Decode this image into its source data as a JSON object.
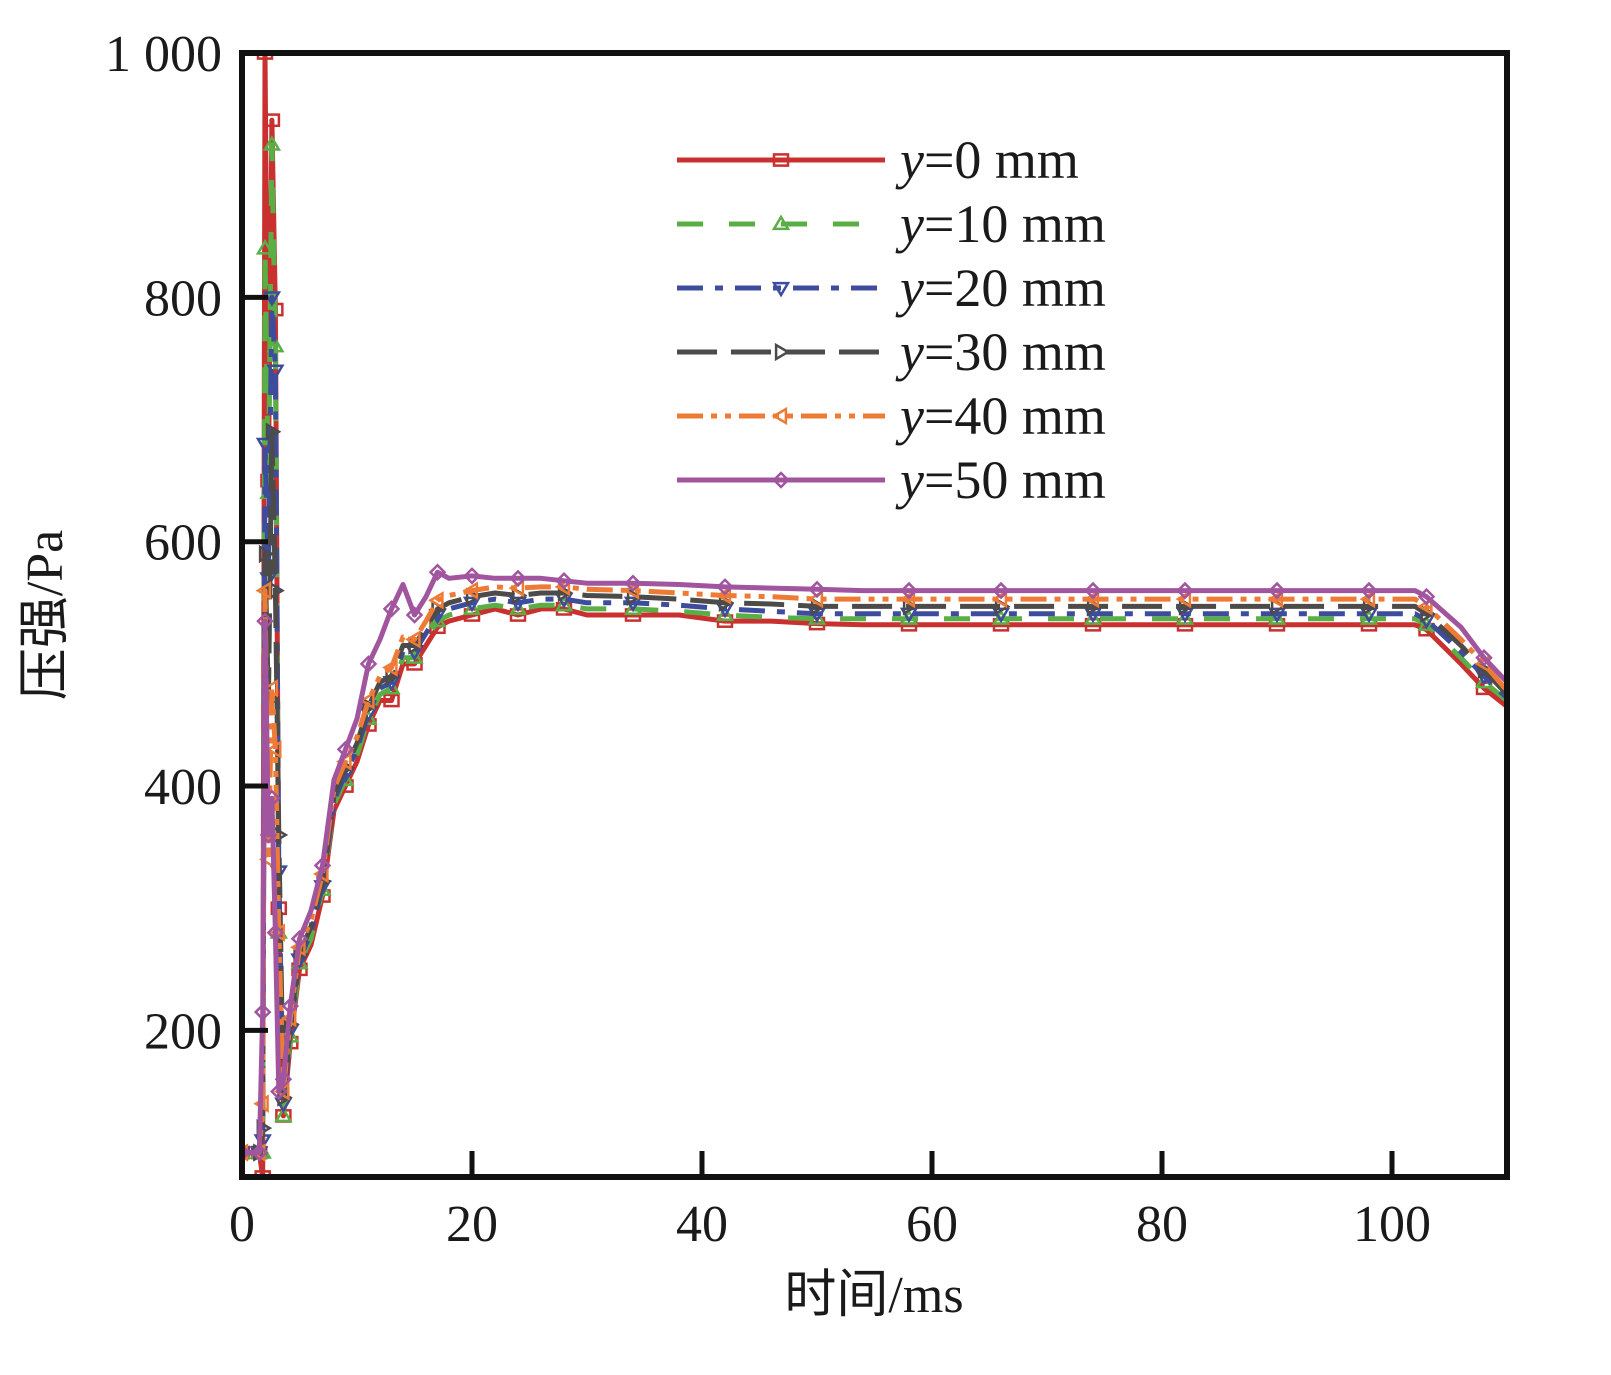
{
  "chart_data": {
    "type": "line",
    "title": "",
    "xlabel": "时间/ms",
    "ylabel": "压强/Pa",
    "xlim": [
      0,
      110
    ],
    "ylim": [
      80,
      1000
    ],
    "x_ticks": [
      0,
      20,
      40,
      60,
      80,
      100
    ],
    "x_tick_labels": [
      "0",
      "20",
      "40",
      "60",
      "80",
      "100"
    ],
    "y_ticks": [
      200,
      400,
      600,
      800,
      1000
    ],
    "y_tick_labels": [
      "200",
      "400",
      "600",
      "800",
      "1 000"
    ],
    "grid": false,
    "legend_position": "top-center",
    "series": [
      {
        "name": "y=0 mm",
        "label_var": "y",
        "label_rest": "=0 mm",
        "color": "#c8312f",
        "dash": "solid",
        "marker": "square",
        "x": [
          0,
          1.5,
          1.8,
          2.0,
          2.3,
          2.6,
          2.9,
          3.2,
          3.6,
          4.2,
          5,
          6,
          7,
          8,
          9,
          10,
          11,
          12,
          13,
          14,
          15,
          16,
          17,
          18,
          20,
          22,
          24,
          26,
          28,
          30,
          34,
          38,
          42,
          46,
          50,
          54,
          58,
          62,
          66,
          70,
          74,
          78,
          82,
          86,
          90,
          94,
          98,
          102,
          103,
          106,
          108,
          110
        ],
        "y": [
          100,
          100,
          80,
          1000,
          650,
          945,
          790,
          300,
          130,
          190,
          250,
          270,
          310,
          380,
          400,
          420,
          450,
          470,
          470,
          500,
          500,
          515,
          530,
          535,
          540,
          545,
          540,
          545,
          545,
          540,
          540,
          540,
          535,
          535,
          533,
          532,
          532,
          532,
          532,
          532,
          532,
          532,
          532,
          532,
          532,
          532,
          532,
          532,
          528,
          500,
          480,
          465
        ]
      },
      {
        "name": "y=10 mm",
        "label_var": "y",
        "label_rest": "=10 mm",
        "color": "#5aae46",
        "dash": "dashed",
        "marker": "triangle-up",
        "x": [
          0,
          1.5,
          1.8,
          2.0,
          2.3,
          2.6,
          2.9,
          3.2,
          3.6,
          4.2,
          5,
          6,
          7,
          8,
          9,
          10,
          11,
          12,
          13,
          14,
          15,
          16,
          17,
          18,
          20,
          22,
          24,
          26,
          28,
          30,
          34,
          38,
          42,
          46,
          50,
          54,
          58,
          62,
          66,
          70,
          74,
          78,
          82,
          86,
          90,
          94,
          98,
          102,
          103,
          106,
          108,
          110
        ],
        "y": [
          100,
          100,
          100,
          840,
          640,
          925,
          760,
          280,
          130,
          195,
          255,
          275,
          315,
          385,
          405,
          425,
          455,
          475,
          480,
          505,
          505,
          520,
          535,
          540,
          545,
          548,
          545,
          548,
          548,
          545,
          545,
          543,
          540,
          538,
          537,
          537,
          537,
          537,
          537,
          537,
          537,
          537,
          537,
          537,
          537,
          537,
          537,
          537,
          532,
          505,
          485,
          470
        ]
      },
      {
        "name": "y=20 mm",
        "label_var": "y",
        "label_rest": "=20 mm",
        "color": "#3d4c9c",
        "dash": "dashdot",
        "marker": "triangle-down",
        "x": [
          0,
          1.5,
          1.8,
          2.0,
          2.3,
          2.6,
          2.9,
          3.2,
          3.6,
          4.2,
          5,
          6,
          7,
          8,
          9,
          10,
          11,
          12,
          13,
          14,
          15,
          16,
          17,
          18,
          20,
          22,
          24,
          26,
          28,
          30,
          34,
          38,
          42,
          46,
          50,
          54,
          58,
          62,
          66,
          70,
          74,
          78,
          82,
          86,
          90,
          94,
          98,
          102,
          103,
          106,
          108,
          110
        ],
        "y": [
          100,
          100,
          110,
          680,
          570,
          800,
          740,
          330,
          140,
          200,
          258,
          280,
          318,
          388,
          410,
          430,
          460,
          480,
          485,
          510,
          510,
          525,
          540,
          545,
          550,
          553,
          550,
          553,
          553,
          550,
          550,
          548,
          545,
          543,
          541,
          541,
          541,
          541,
          541,
          541,
          541,
          541,
          541,
          541,
          541,
          541,
          541,
          541,
          536,
          510,
          490,
          472
        ]
      },
      {
        "name": "y=30 mm",
        "label_var": "y",
        "label_rest": "=30 mm",
        "color": "#4d4a4a",
        "dash": "longdash",
        "marker": "triangle-right",
        "x": [
          0,
          1.5,
          1.8,
          2.0,
          2.3,
          2.6,
          2.9,
          3.2,
          3.6,
          4.2,
          5,
          6,
          7,
          8,
          9,
          10,
          11,
          12,
          13,
          14,
          15,
          16,
          17,
          18,
          20,
          22,
          24,
          26,
          28,
          30,
          34,
          38,
          42,
          46,
          50,
          54,
          58,
          62,
          66,
          70,
          74,
          78,
          82,
          86,
          90,
          94,
          98,
          102,
          103,
          106,
          108,
          110
        ],
        "y": [
          100,
          100,
          120,
          590,
          470,
          690,
          560,
          360,
          145,
          205,
          262,
          285,
          322,
          392,
          415,
          435,
          465,
          485,
          490,
          515,
          515,
          530,
          545,
          550,
          555,
          558,
          556,
          558,
          558,
          556,
          555,
          553,
          550,
          549,
          547,
          547,
          547,
          547,
          547,
          547,
          547,
          547,
          547,
          547,
          547,
          547,
          547,
          547,
          541,
          515,
          495,
          475
        ]
      },
      {
        "name": "y=40 mm",
        "label_var": "y",
        "label_rest": "=40 mm",
        "color": "#ee7b35",
        "dash": "dashdotdot",
        "marker": "triangle-left",
        "x": [
          0,
          1.5,
          1.8,
          2.0,
          2.3,
          2.6,
          2.9,
          3.2,
          3.6,
          4.2,
          5,
          6,
          7,
          8,
          9,
          10,
          11,
          12,
          13,
          14,
          15,
          16,
          17,
          18,
          20,
          22,
          24,
          26,
          28,
          30,
          34,
          38,
          42,
          46,
          50,
          54,
          58,
          62,
          66,
          70,
          74,
          78,
          82,
          86,
          90,
          94,
          98,
          102,
          103,
          106,
          108,
          110
        ],
        "y": [
          100,
          100,
          140,
          560,
          340,
          480,
          430,
          280,
          150,
          210,
          268,
          290,
          328,
          398,
          420,
          440,
          470,
          490,
          497,
          522,
          520,
          535,
          552,
          556,
          560,
          563,
          562,
          563,
          563,
          561,
          560,
          558,
          556,
          555,
          553,
          553,
          553,
          553,
          553,
          553,
          553,
          553,
          553,
          553,
          553,
          553,
          553,
          553,
          547,
          520,
          500,
          478
        ]
      },
      {
        "name": "y=50 mm",
        "label_var": "y",
        "label_rest": "=50 mm",
        "color": "#a1559f",
        "dash": "solid",
        "marker": "diamond",
        "x": [
          0,
          1.5,
          1.8,
          2.0,
          2.3,
          2.6,
          2.9,
          3.2,
          3.6,
          4.2,
          5,
          6,
          7,
          8,
          9,
          10,
          11,
          12,
          13,
          14,
          15,
          16,
          17,
          18,
          20,
          22,
          24,
          26,
          28,
          30,
          34,
          38,
          42,
          46,
          50,
          54,
          58,
          62,
          66,
          70,
          74,
          78,
          82,
          86,
          90,
          94,
          98,
          102,
          103,
          106,
          108,
          110
        ],
        "y": [
          100,
          100,
          215,
          535,
          360,
          390,
          280,
          150,
          160,
          220,
          275,
          298,
          335,
          405,
          430,
          455,
          500,
          520,
          545,
          565,
          540,
          555,
          575,
          570,
          572,
          570,
          570,
          570,
          568,
          566,
          566,
          565,
          563,
          562,
          561,
          560,
          560,
          560,
          560,
          560,
          560,
          560,
          560,
          560,
          560,
          560,
          560,
          560,
          555,
          530,
          505,
          485
        ]
      }
    ]
  }
}
